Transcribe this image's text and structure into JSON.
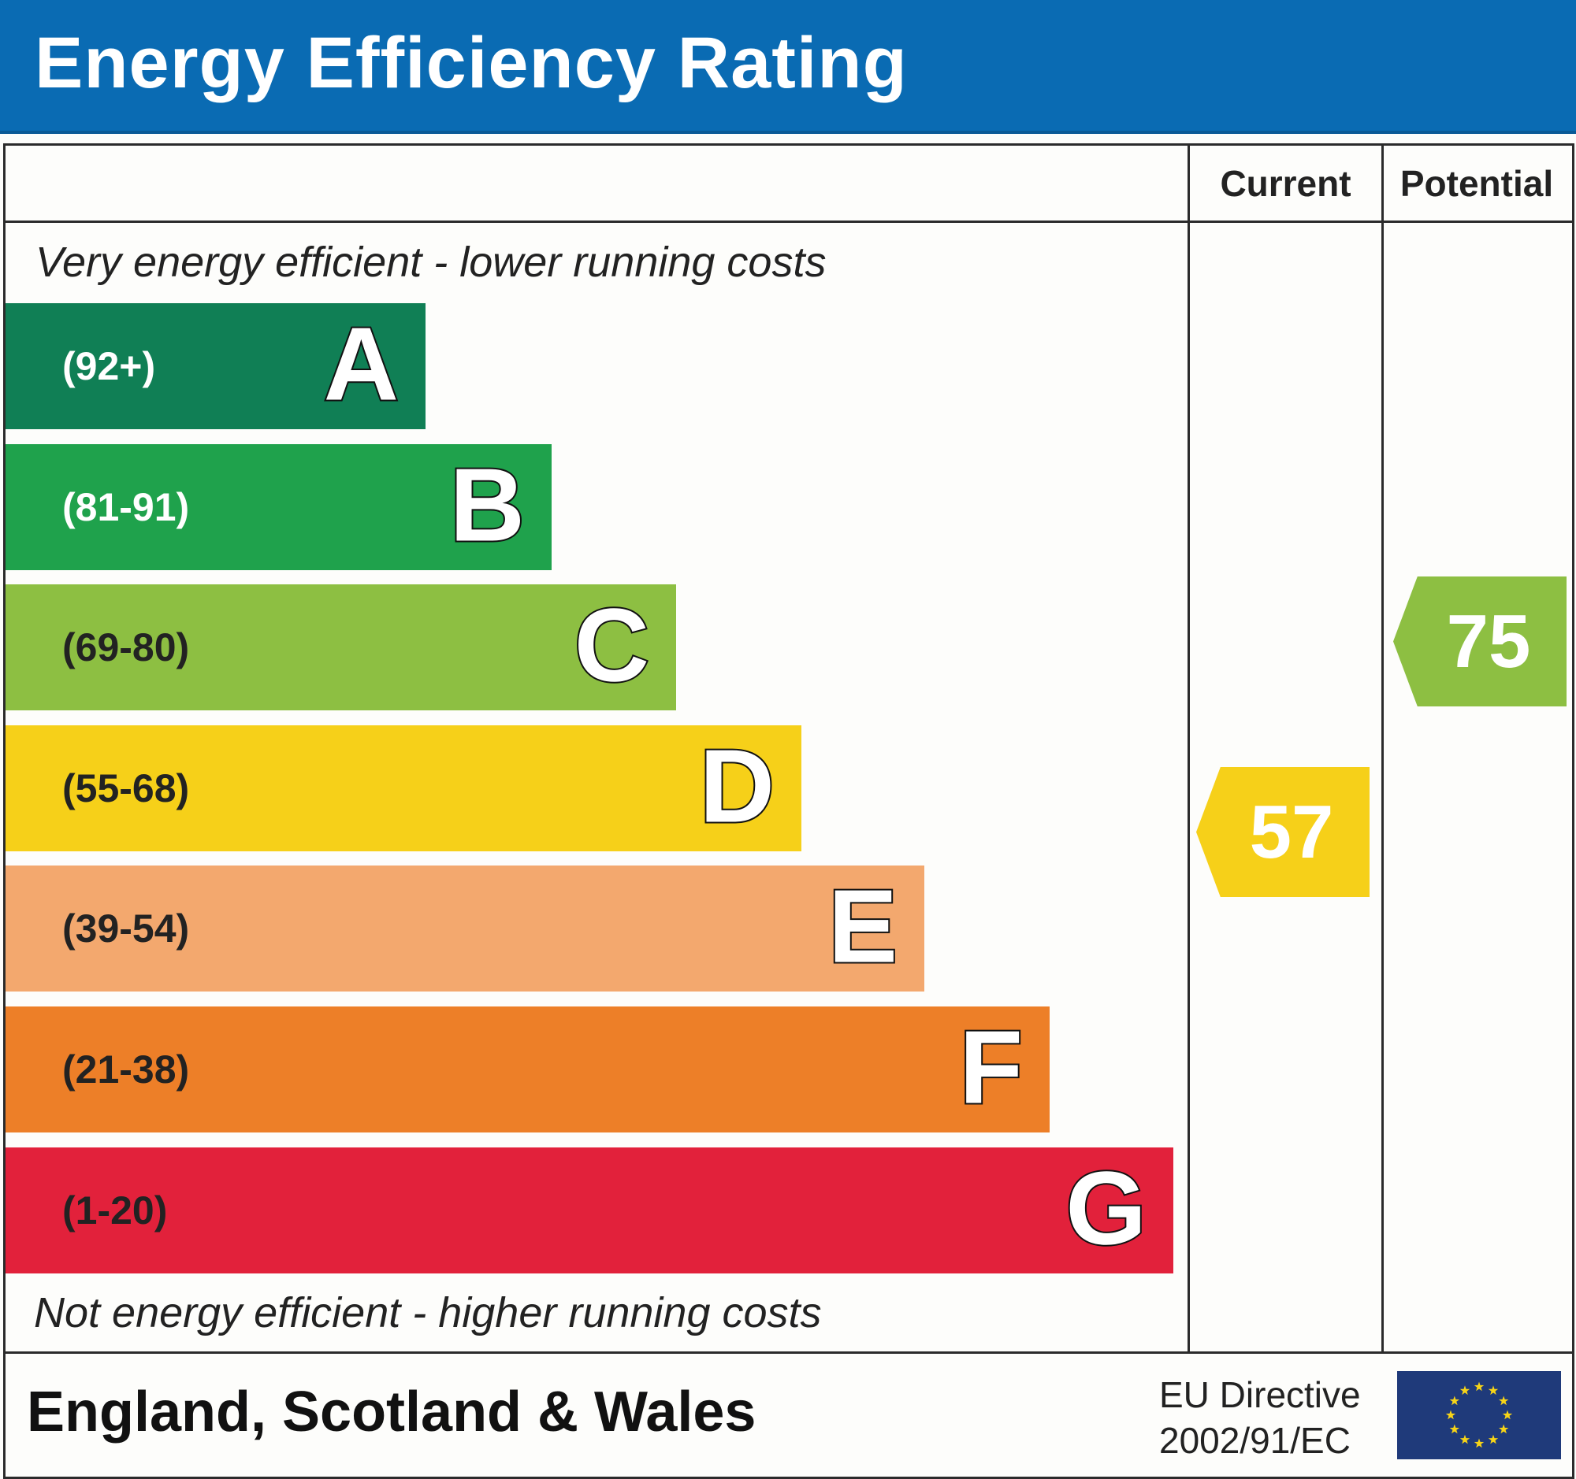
{
  "title": "Energy Efficiency Rating",
  "columns": {
    "current": "Current",
    "potential": "Potential"
  },
  "top_note": "Very energy efficient - lower running costs",
  "bottom_note": "Not energy efficient - higher running costs",
  "bands": [
    {
      "letter": "A",
      "range": "(92+)",
      "color": "#107f55",
      "text_color": "#ffffff"
    },
    {
      "letter": "B",
      "range": "(81-91)",
      "color": "#1fa24c",
      "text_color": "#ffffff"
    },
    {
      "letter": "C",
      "range": "(69-80)",
      "color": "#8dbf42",
      "text_color": "#222222"
    },
    {
      "letter": "D",
      "range": "(55-68)",
      "color": "#f6d019",
      "text_color": "#222222"
    },
    {
      "letter": "E",
      "range": "(39-54)",
      "color": "#f3a86e",
      "text_color": "#222222"
    },
    {
      "letter": "F",
      "range": "(21-38)",
      "color": "#ed7f28",
      "text_color": "#222222"
    },
    {
      "letter": "G",
      "range": "(1-20)",
      "color": "#e2213b",
      "text_color": "#222222"
    }
  ],
  "current": {
    "value": "57",
    "band": "D",
    "color": "#f6d019"
  },
  "potential": {
    "value": "75",
    "band": "C",
    "color": "#8dbf42"
  },
  "footer": {
    "region": "England, Scotland & Wales",
    "directive_line1": "EU Directive",
    "directive_line2": "2002/91/EC",
    "flag": "eu-flag-icon"
  }
}
